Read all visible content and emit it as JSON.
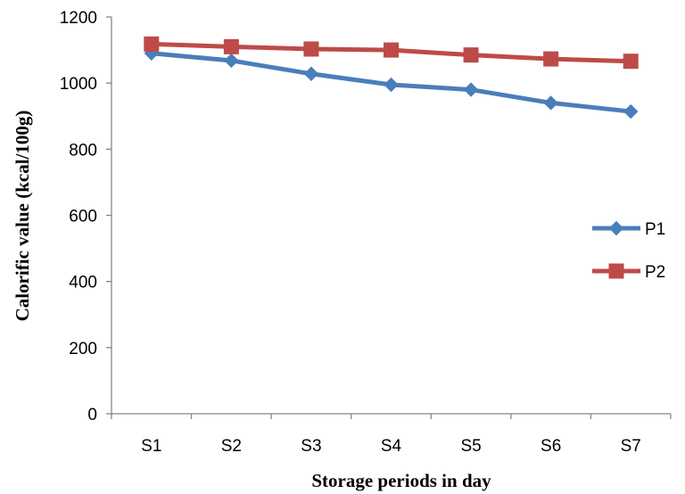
{
  "chart_data": {
    "type": "line",
    "categories": [
      "S1",
      "S2",
      "S3",
      "S4",
      "S5",
      "S6",
      "S7"
    ],
    "series": [
      {
        "name": "P1",
        "values": [
          1090,
          1068,
          1028,
          995,
          980,
          940,
          914
        ],
        "color": "#4a7ebb",
        "marker": "diamond"
      },
      {
        "name": "P2",
        "values": [
          1118,
          1110,
          1103,
          1100,
          1085,
          1073,
          1066
        ],
        "color": "#be4b48",
        "marker": "square"
      }
    ],
    "xlabel": "Storage periods in day",
    "ylabel": "Calorific value (kcal/100g)",
    "ylim": [
      0,
      1200
    ],
    "yticks": [
      0,
      200,
      400,
      600,
      800,
      1000,
      1200
    ],
    "grid": false,
    "legend_position": "right"
  }
}
